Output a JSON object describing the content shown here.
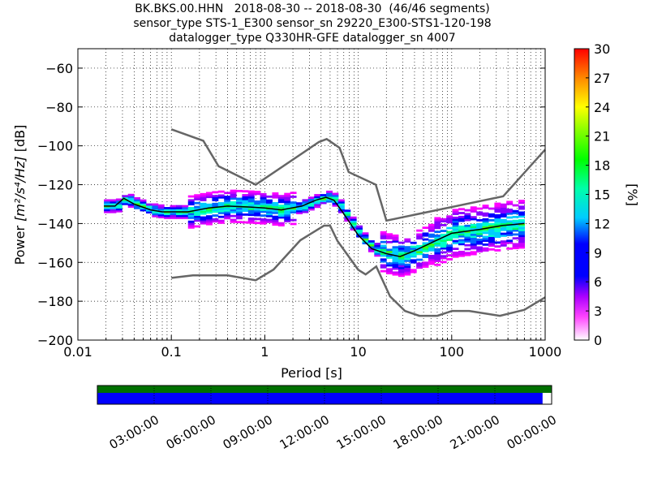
{
  "title": {
    "line1": "BK.BKS.00.HHN   2018-08-30 -- 2018-08-30  (46/46 segments)",
    "line2": "sensor_type STS-1_E300 sensor_sn 29220_E300-STS1-120-198",
    "line3": "datalogger_type Q330HR-GFE datalogger_sn 4007"
  },
  "chart_data": {
    "type": "heatmap",
    "xlabel": "Period [s]",
    "ylabel_prefix": "Power ",
    "ylabel_units": "[m²/s⁴/Hz]",
    "ylabel_suffix": " [dB]",
    "xscale": "log",
    "xlim": [
      0.01,
      1000
    ],
    "ylim": [
      -200,
      -50
    ],
    "x_ticks": [
      0.01,
      0.1,
      1,
      10,
      100,
      1000
    ],
    "x_tick_labels": [
      "0.01",
      "0.1",
      "1",
      "10",
      "100",
      "1000"
    ],
    "y_ticks": [
      -200,
      -180,
      -160,
      -140,
      -120,
      -100,
      -80,
      -60
    ],
    "y_tick_labels": [
      "−200",
      "−180",
      "−160",
      "−140",
      "−120",
      "−100",
      "−80",
      "−60"
    ],
    "grid": true,
    "colorbar": {
      "label": "[%]",
      "range": [
        0,
        30
      ],
      "ticks": [
        0,
        3,
        6,
        9,
        12,
        15,
        18,
        21,
        24,
        27,
        30
      ],
      "tick_labels": [
        "0",
        "3",
        "6",
        "9",
        "12",
        "15",
        "18",
        "21",
        "24",
        "27",
        "30"
      ]
    },
    "nhnm": {
      "color": "#666666",
      "period": [
        0.1,
        0.22,
        0.32,
        0.8,
        3.8,
        4.6,
        6.3,
        7.9,
        15.4,
        20,
        354.8,
        10000
      ],
      "power": [
        -91.5,
        -97.4,
        -110.5,
        -120,
        -98,
        -96.5,
        -101,
        -113.5,
        -120,
        -138.5,
        -126,
        -48.5
      ]
    },
    "nlnm": {
      "color": "#666666",
      "period": [
        0.1,
        0.17,
        0.4,
        0.8,
        1.24,
        2.4,
        4.3,
        5,
        6,
        10,
        12,
        15.6,
        21.9,
        31.6,
        45,
        70,
        101,
        154,
        328,
        600,
        1000
      ],
      "power": [
        -168,
        -166.7,
        -166.7,
        -169.2,
        -163.7,
        -148.6,
        -141.1,
        -141.1,
        -149,
        -163.8,
        -166.2,
        -162.1,
        -177.5,
        -185,
        -187.5,
        -187.5,
        -185,
        -185,
        -187.5,
        -184.4,
        -178
      ]
    },
    "mean_curve": {
      "color": "#000000",
      "period": [
        0.019,
        0.025,
        0.031,
        0.04,
        0.06,
        0.08,
        0.1,
        0.15,
        0.25,
        0.4,
        0.7,
        1.0,
        1.5,
        2.5,
        3.5,
        4.5,
        5.5,
        7,
        10,
        14,
        20,
        28,
        40,
        60,
        100,
        200,
        350,
        600
      ],
      "power": [
        -131,
        -131,
        -127,
        -130,
        -133,
        -134,
        -134,
        -134,
        -132,
        -131,
        -131.5,
        -132,
        -133,
        -131,
        -128,
        -126.5,
        -128,
        -135,
        -146,
        -153,
        -155.5,
        -157,
        -154,
        -150,
        -145,
        -143,
        -141,
        -140
      ]
    },
    "time_axis": {
      "tick_labels": [
        "03:00:00",
        "06:00:00",
        "09:00:00",
        "12:00:00",
        "15:00:00",
        "18:00:00",
        "21:00:00",
        "00:00:00"
      ],
      "data_coverage_fraction": 1.0,
      "gap_coverage_fraction": 0.98,
      "data_color": "#007000",
      "gap_color": "#0000ff"
    }
  }
}
